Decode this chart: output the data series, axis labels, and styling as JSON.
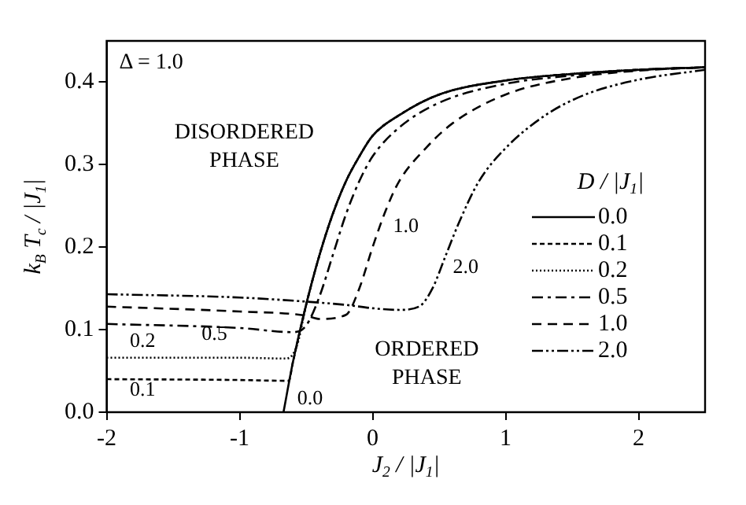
{
  "chart_data": {
    "type": "line",
    "xlabel": "J$_{2}$ / |J$_{1}$|",
    "ylabel": "k$_{B}$ T$_{c}$ / |J$_{1}$|",
    "legend_title": "D / |J$_{1}$|",
    "legend": "right",
    "grid": false,
    "marker": "none",
    "xlim": [
      -2,
      2.5
    ],
    "ylim": [
      0,
      0.45
    ],
    "xticks": [
      -2,
      -1,
      0,
      1,
      2
    ],
    "yticks": [
      {
        "value": 0,
        "label": "0.0"
      },
      {
        "value": 0.1,
        "label": "0.1"
      },
      {
        "value": 0.2,
        "label": "0.2"
      },
      {
        "value": 0.3,
        "label": "0.3"
      },
      {
        "value": 0.4,
        "label": "0.4"
      }
    ],
    "series": [
      {
        "name": "0.0",
        "color": "#000000",
        "line_style": "solid",
        "x": [
          -0.67,
          -0.6,
          -0.5,
          -0.4,
          -0.3,
          -0.2,
          -0.1,
          0,
          0.2,
          0.5,
          1,
          1.5,
          2,
          2.5
        ],
        "values": [
          0,
          0.06,
          0.13,
          0.19,
          0.24,
          0.28,
          0.31,
          0.335,
          0.36,
          0.385,
          0.402,
          0.41,
          0.415,
          0.418
        ]
      },
      {
        "name": "0.1",
        "color": "#000000",
        "line_style": "dashed",
        "x": [
          -2,
          -1,
          -0.63,
          -0.6,
          -0.5,
          -0.4,
          -0.3,
          -0.2,
          -0.1,
          0,
          0.2,
          0.5,
          1,
          1.5,
          2,
          2.5
        ],
        "values": [
          0.04,
          0.039,
          0.038,
          0.06,
          0.13,
          0.19,
          0.24,
          0.28,
          0.31,
          0.335,
          0.36,
          0.385,
          0.402,
          0.41,
          0.415,
          0.418
        ]
      },
      {
        "name": "0.2",
        "color": "#000000",
        "line_style": "dotted",
        "x": [
          -2,
          -1,
          -0.65,
          -0.57,
          -0.5,
          -0.4,
          -0.3,
          -0.2,
          -0.1,
          0,
          0.2,
          0.5,
          1,
          1.5,
          2,
          2.5
        ],
        "values": [
          0.066,
          0.066,
          0.065,
          0.08,
          0.13,
          0.19,
          0.24,
          0.28,
          0.31,
          0.335,
          0.36,
          0.385,
          0.402,
          0.41,
          0.415,
          0.418
        ]
      },
      {
        "name": "0.5",
        "color": "#000000",
        "line_style": "dashed",
        "x": [
          -2,
          -1,
          -0.6,
          -0.5,
          -0.4,
          -0.3,
          -0.2,
          -0.1,
          0,
          0.2,
          0.5,
          1,
          1.5,
          2,
          2.5
        ],
        "values": [
          0.107,
          0.102,
          0.097,
          0.105,
          0.14,
          0.19,
          0.24,
          0.28,
          0.31,
          0.345,
          0.375,
          0.398,
          0.408,
          0.415,
          0.418
        ]
      },
      {
        "name": "1.0",
        "color": "#000000",
        "line_style": "dashed",
        "x": [
          -2,
          -1,
          -0.5,
          -0.4,
          -0.2,
          -0.1,
          0,
          0.1,
          0.2,
          0.4,
          0.6,
          1,
          1.5,
          2,
          2.5
        ],
        "values": [
          0.128,
          0.122,
          0.117,
          0.113,
          0.118,
          0.15,
          0.2,
          0.245,
          0.28,
          0.32,
          0.35,
          0.385,
          0.405,
          0.414,
          0.418
        ]
      },
      {
        "name": "2.0",
        "color": "#000000",
        "line_style": "dashed",
        "x": [
          -2,
          -1,
          -0.5,
          -0.2,
          0,
          0.2,
          0.35,
          0.45,
          0.55,
          0.65,
          0.8,
          1,
          1.3,
          1.6,
          2,
          2.5
        ],
        "values": [
          0.143,
          0.139,
          0.134,
          0.13,
          0.126,
          0.124,
          0.128,
          0.15,
          0.19,
          0.23,
          0.28,
          0.32,
          0.36,
          0.385,
          0.403,
          0.415
        ]
      }
    ],
    "annotations": [
      "Δ = 1.0",
      "DISORDERED PHASE",
      "ORDERED PHASE",
      "1.0",
      "2.0",
      "0.2",
      "0.5",
      "0.1",
      "0.0"
    ]
  }
}
